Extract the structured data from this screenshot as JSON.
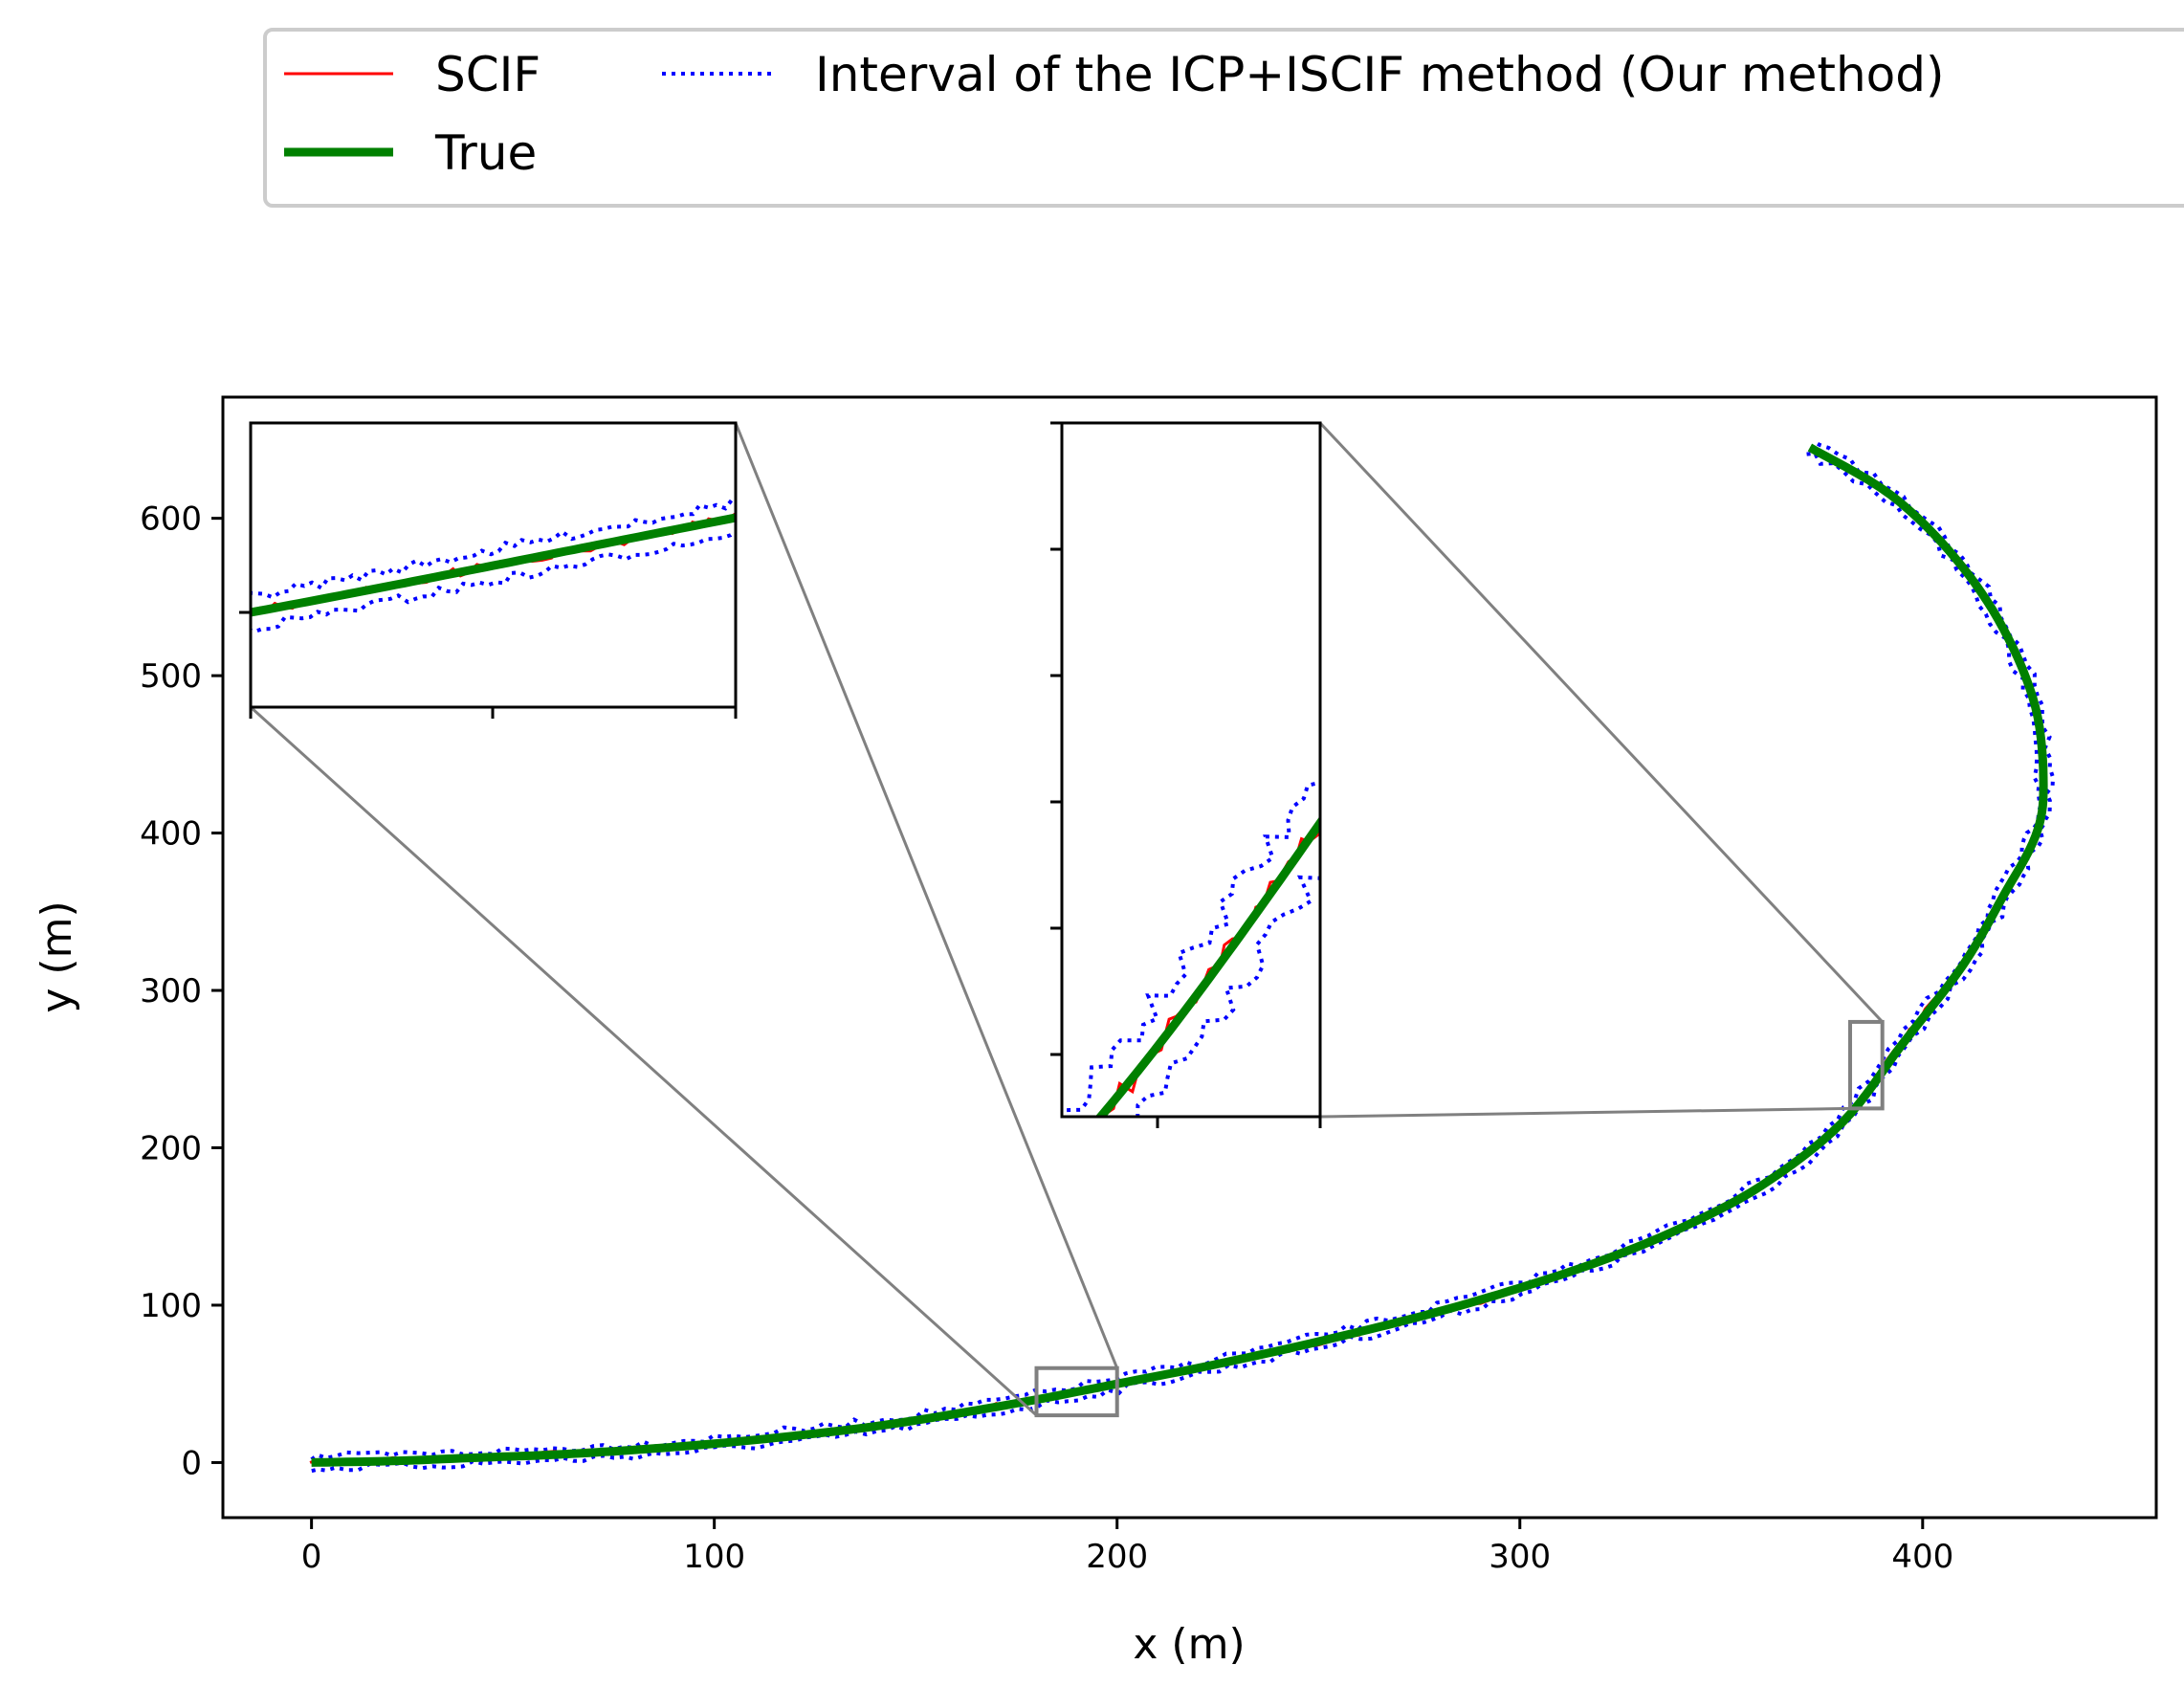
{
  "chart_data": {
    "type": "line",
    "title": "",
    "xlabel": "x (m)",
    "ylabel": "y (m)",
    "xlim": [
      -22,
      458
    ],
    "ylim": [
      -35,
      677
    ],
    "xticks": [
      0,
      100,
      200,
      300,
      400
    ],
    "yticks": [
      0,
      100,
      200,
      300,
      400,
      500,
      600
    ],
    "grid": false,
    "legend_position": "above-top",
    "colors": {
      "scif": "#ff0000",
      "true": "#008000",
      "interval": "#0000ff",
      "zoom": "#808080"
    },
    "series": [
      {
        "name": "SCIF",
        "style": "solid-thin",
        "x": [
          0,
          20,
          40,
          60,
          80,
          100,
          120,
          140,
          160,
          180,
          200,
          220,
          240,
          260,
          280,
          300,
          320,
          340,
          360,
          380,
          395,
          410,
          420,
          428,
          430,
          428,
          420,
          408,
          392,
          372
        ],
        "y": [
          1,
          2,
          4,
          6,
          9,
          12,
          17,
          24,
          32,
          41,
          51,
          60,
          70,
          82,
          95,
          110,
          128,
          149,
          175,
          215,
          268,
          318,
          362,
          398,
          430,
          480,
          530,
          575,
          615,
          645
        ]
      },
      {
        "name": "True",
        "style": "solid-thick",
        "x": [
          0,
          20,
          40,
          60,
          80,
          100,
          120,
          140,
          160,
          180,
          200,
          220,
          240,
          260,
          280,
          300,
          320,
          340,
          360,
          380,
          395,
          410,
          420,
          428,
          430,
          428,
          420,
          408,
          392,
          372
        ],
        "y": [
          0,
          1,
          3,
          5,
          8,
          12,
          17,
          23,
          31,
          40,
          50,
          60,
          71,
          83,
          96,
          111,
          128,
          149,
          176,
          216,
          266,
          316,
          360,
          398,
          430,
          480,
          530,
          575,
          615,
          645
        ]
      },
      {
        "name": "Interval of the ICP+ISCIF method (Our method)",
        "style": "dotted",
        "bounds": "upper-lower"
      }
    ],
    "zoom_boxes": [
      {
        "region_x": [
          180,
          200
        ],
        "region_y": [
          30,
          60
        ]
      },
      {
        "region_x": [
          382,
          390
        ],
        "region_y": [
          225,
          280
        ]
      }
    ]
  }
}
